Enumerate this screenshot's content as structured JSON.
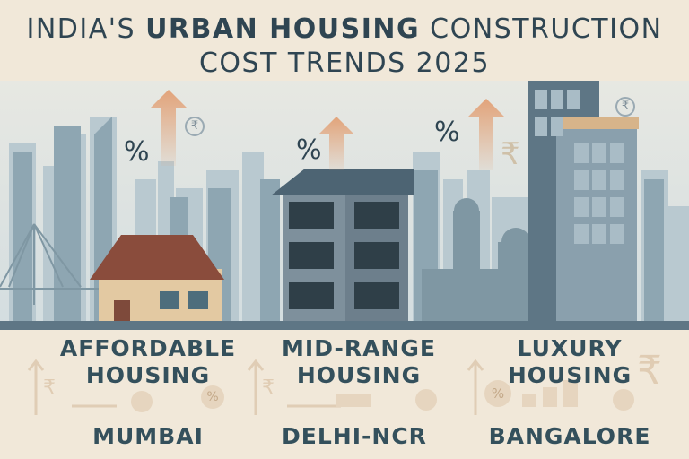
{
  "header": {
    "title_pre": "INDIA'S ",
    "title_bold": "URBAN HOUSING",
    "title_post": " CONSTRUCTION",
    "title_line2": "COST TRENDS 2025"
  },
  "segments": [
    {
      "line1": "AFFORDABLE",
      "line2": "HOUSING",
      "city": "MUMBAI"
    },
    {
      "line1": "MID-RANGE",
      "line2": "HOUSING",
      "city": "DELHI-NCR"
    },
    {
      "line1": "LUXURY",
      "line2": "HOUSING",
      "city": "BANGALORE"
    }
  ],
  "symbols": {
    "percent": "%",
    "rupee": "₹"
  },
  "colors": {
    "sky": "#dfe5e5",
    "ground": "#f1e8d9",
    "text": "#34505c",
    "arrow": "#e3a77f",
    "building": "#6d7f8c"
  },
  "icons": [
    "up-arrow-icon",
    "rupee-coin-icon",
    "percent-icon"
  ]
}
